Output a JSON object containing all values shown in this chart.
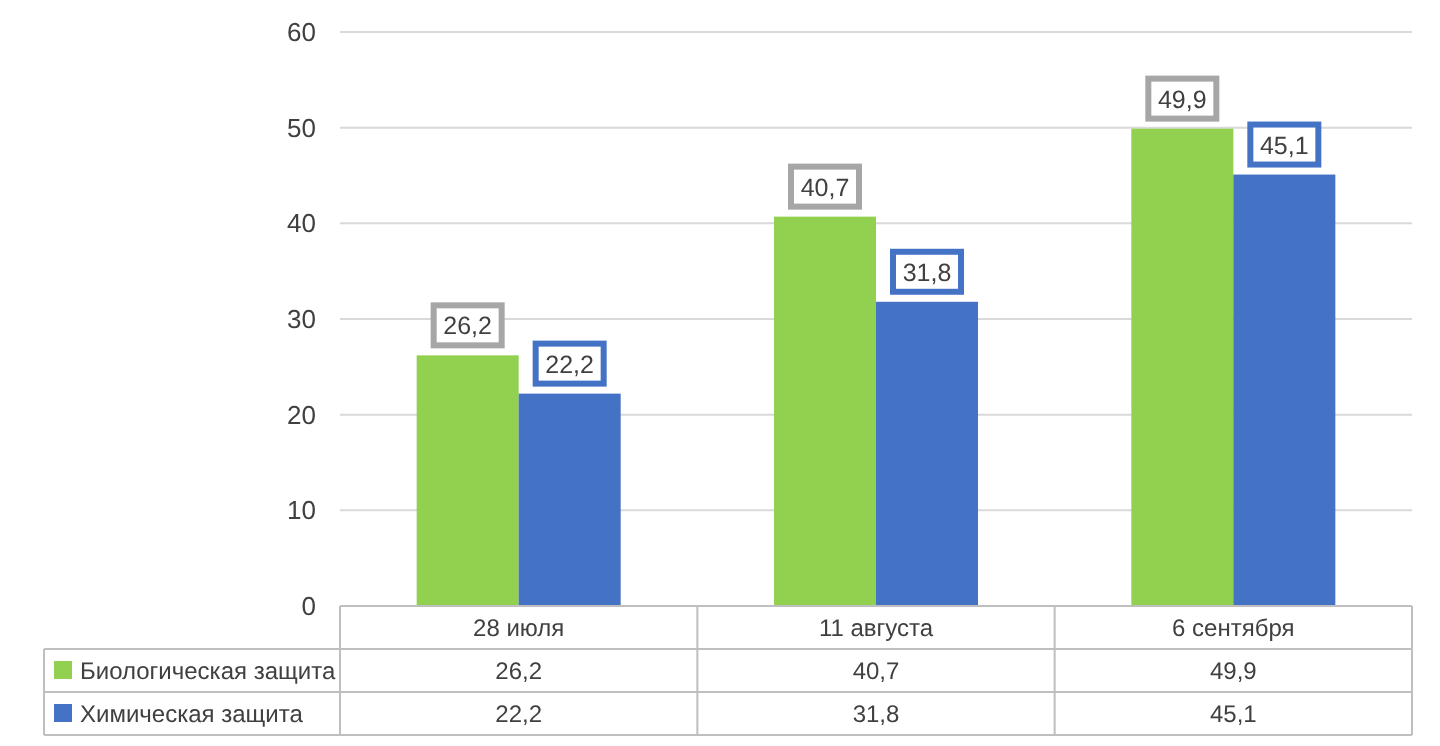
{
  "chart_data": {
    "type": "bar",
    "categories": [
      "28 июля",
      "11 августа",
      "6 сентября"
    ],
    "series": [
      {
        "name": "Биологическая защита",
        "color": "#92d050",
        "values": [
          26.2,
          40.7,
          49.9
        ],
        "value_labels": [
          "26,2",
          "40,7",
          "49,9"
        ]
      },
      {
        "name": "Химическая защита",
        "color": "#4472c4",
        "values": [
          22.2,
          31.8,
          45.1
        ],
        "value_labels": [
          "22,2",
          "31,8",
          "45,1"
        ]
      }
    ],
    "ylim": [
      0,
      60
    ],
    "yticks": [
      0,
      10,
      20,
      30,
      40,
      50,
      60
    ],
    "grid": "y",
    "legend": "bottom"
  }
}
